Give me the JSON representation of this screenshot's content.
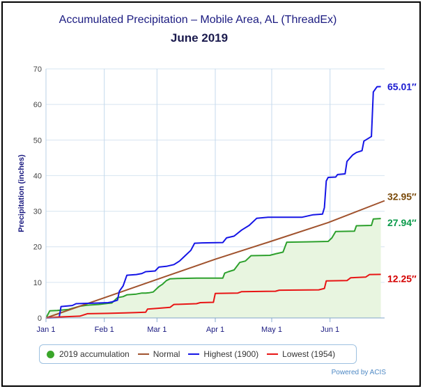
{
  "chart_data": {
    "type": "line",
    "title": "Accumulated Precipitation – Mobile Area, AL (ThreadEx)",
    "subtitle": "June 2019",
    "ylabel": "Precipitation (inches)",
    "xlabel": "",
    "ylim": [
      0,
      70
    ],
    "yticks": [
      "0",
      "10",
      "20",
      "30",
      "40",
      "50",
      "60",
      "70"
    ],
    "x_range": [
      "Jan 1",
      "Jun 30"
    ],
    "xticks": [
      {
        "label": "Jan 1",
        "day": 0
      },
      {
        "label": "Feb 1",
        "day": 31
      },
      {
        "label": "Mar 1",
        "day": 59
      },
      {
        "label": "Apr 1",
        "day": 90
      },
      {
        "label": "May 1",
        "day": 120
      },
      {
        "label": "Jun 1",
        "day": 151
      }
    ],
    "grid": true,
    "legend_position": "bottom",
    "credit": "Powered by ACIS",
    "series": [
      {
        "name": "2019 accumulation",
        "color": "#2ca02c",
        "fill": "#e8f5e0",
        "end_label": "27.94″",
        "points": [
          [
            0,
            0
          ],
          [
            2,
            2
          ],
          [
            6,
            2.1
          ],
          [
            12,
            2.4
          ],
          [
            18,
            3.3
          ],
          [
            22,
            3.6
          ],
          [
            28,
            3.8
          ],
          [
            33,
            4.1
          ],
          [
            35,
            4.2
          ],
          [
            38,
            5.7
          ],
          [
            41,
            6.0
          ],
          [
            43,
            6.5
          ],
          [
            48,
            6.7
          ],
          [
            51,
            7.0
          ],
          [
            53,
            7.0
          ],
          [
            55,
            7.1
          ],
          [
            57,
            7.3
          ],
          [
            60,
            8.8
          ],
          [
            62,
            9.5
          ],
          [
            64,
            10.5
          ],
          [
            66,
            11.0
          ],
          [
            70,
            11.1
          ],
          [
            80,
            11.2
          ],
          [
            94,
            11.2
          ],
          [
            95,
            12.6
          ],
          [
            97,
            13.0
          ],
          [
            100,
            13.5
          ],
          [
            103,
            15.6
          ],
          [
            106,
            16.0
          ],
          [
            109,
            17.5
          ],
          [
            119,
            17.6
          ],
          [
            122,
            18.0
          ],
          [
            126,
            18.5
          ],
          [
            128,
            21.3
          ],
          [
            139,
            21.4
          ],
          [
            150,
            21.5
          ],
          [
            152,
            22.5
          ],
          [
            154,
            24.3
          ],
          [
            164,
            24.4
          ],
          [
            165,
            25.9
          ],
          [
            173,
            26.0
          ],
          [
            174,
            27.8
          ],
          [
            178,
            27.94
          ]
        ]
      },
      {
        "name": "Normal",
        "color": "#a0522d",
        "end_label": "32.95″",
        "points": [
          [
            0,
            0
          ],
          [
            30,
            5.5
          ],
          [
            60,
            11.0
          ],
          [
            90,
            16.5
          ],
          [
            120,
            21.6
          ],
          [
            150,
            26.8
          ],
          [
            180,
            32.95
          ]
        ]
      },
      {
        "name": "Highest (1900)",
        "color": "#1414e6",
        "end_label": "65.01″",
        "points": [
          [
            0,
            0
          ],
          [
            7,
            0.1
          ],
          [
            8,
            3.2
          ],
          [
            14,
            3.5
          ],
          [
            16,
            4.0
          ],
          [
            28,
            4.2
          ],
          [
            33,
            4.3
          ],
          [
            35,
            4.5
          ],
          [
            38,
            5.0
          ],
          [
            39,
            7.5
          ],
          [
            41,
            9.0
          ],
          [
            43,
            12.0
          ],
          [
            48,
            12.2
          ],
          [
            51,
            12.5
          ],
          [
            53,
            13.0
          ],
          [
            58,
            13.2
          ],
          [
            60,
            14.3
          ],
          [
            64,
            14.5
          ],
          [
            68,
            15.0
          ],
          [
            71,
            16.0
          ],
          [
            74,
            17.5
          ],
          [
            77,
            19.0
          ],
          [
            79,
            21.0
          ],
          [
            83,
            21.1
          ],
          [
            94,
            21.2
          ],
          [
            96,
            22.5
          ],
          [
            100,
            23.0
          ],
          [
            104,
            24.7
          ],
          [
            108,
            26.0
          ],
          [
            112,
            28.0
          ],
          [
            118,
            28.3
          ],
          [
            136,
            28.3
          ],
          [
            142,
            29.0
          ],
          [
            147,
            29.2
          ],
          [
            148,
            31.0
          ],
          [
            149,
            38.5
          ],
          [
            150,
            39.5
          ],
          [
            154,
            39.6
          ],
          [
            155,
            40.3
          ],
          [
            159,
            40.5
          ],
          [
            160,
            44.0
          ],
          [
            163,
            45.8
          ],
          [
            165,
            46.5
          ],
          [
            168,
            47.0
          ],
          [
            169,
            49.7
          ],
          [
            173,
            51.0
          ],
          [
            174,
            63.5
          ],
          [
            176,
            65.0
          ],
          [
            178,
            65.01
          ]
        ]
      },
      {
        "name": "Lowest (1954)",
        "color": "#e81414",
        "end_label": "12.25″",
        "points": [
          [
            0,
            0
          ],
          [
            8,
            0.3
          ],
          [
            18,
            0.5
          ],
          [
            22,
            1.2
          ],
          [
            33,
            1.3
          ],
          [
            42,
            1.4
          ],
          [
            48,
            1.5
          ],
          [
            53,
            1.6
          ],
          [
            54,
            2.5
          ],
          [
            59,
            2.7
          ],
          [
            66,
            3.0
          ],
          [
            68,
            3.8
          ],
          [
            80,
            4.0
          ],
          [
            82,
            4.3
          ],
          [
            89,
            4.4
          ],
          [
            90,
            6.9
          ],
          [
            102,
            7.0
          ],
          [
            104,
            7.4
          ],
          [
            122,
            7.5
          ],
          [
            124,
            7.8
          ],
          [
            145,
            7.9
          ],
          [
            148,
            8.3
          ],
          [
            149,
            10.4
          ],
          [
            160,
            10.5
          ],
          [
            162,
            11.3
          ],
          [
            170,
            11.5
          ],
          [
            172,
            12.2
          ],
          [
            178,
            12.25
          ]
        ]
      }
    ]
  }
}
